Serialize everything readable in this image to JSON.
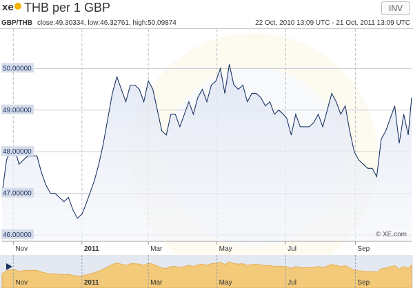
{
  "header": {
    "logo_text": "xe",
    "title": "THB per 1 GBP",
    "inv_label": "INV"
  },
  "subheader": {
    "pair": "GBP/THB",
    "stats": "close:49.30334, low:46.32761, high:50.09874",
    "range": "22 Oct, 2010 13:09 UTC - 21 Oct, 2011 13:09 UTC"
  },
  "watermark": "© XE.com",
  "colors": {
    "line": "#1a3563",
    "label_bg": "#d6dcea",
    "overview_fill": "#f3c97a",
    "overview_bg": "#e4e8f0",
    "accent": "#f2b400"
  },
  "chart_data": {
    "type": "line",
    "title": "THB per 1 GBP",
    "x_start": "2010-10-22",
    "x_end": "2011-10-21",
    "ylim": [
      45.85,
      50.95
    ],
    "y_ticks": [
      "46.00000",
      "47.00000",
      "48.00000",
      "49.00000",
      "50.00000"
    ],
    "y_tick_values": [
      46,
      47,
      48,
      49,
      50
    ],
    "month_ticks": [
      {
        "label": "Nov",
        "date": "2010-11-01",
        "bold": false
      },
      {
        "label": "2011",
        "date": "2011-01-01",
        "bold": true
      },
      {
        "label": "Mar",
        "date": "2011-03-01",
        "bold": false
      },
      {
        "label": "May",
        "date": "2011-05-01",
        "bold": false
      },
      {
        "label": "Jul",
        "date": "2011-07-01",
        "bold": false
      },
      {
        "label": "Sep",
        "date": "2011-09-01",
        "bold": false
      }
    ],
    "grid": true,
    "series": [
      {
        "x": [
          "2010-10-22",
          "2010-10-26",
          "2010-10-29",
          "2010-11-02",
          "2010-11-06",
          "2010-11-10",
          "2010-11-14",
          "2010-11-18",
          "2010-11-22",
          "2010-11-26",
          "2010-11-30",
          "2010-12-04",
          "2010-12-08",
          "2010-12-12",
          "2010-12-16",
          "2010-12-20",
          "2010-12-24",
          "2010-12-28",
          "2011-01-01",
          "2011-01-04",
          "2011-01-08",
          "2011-01-12",
          "2011-01-16",
          "2011-01-20",
          "2011-01-24",
          "2011-01-28",
          "2011-02-01",
          "2011-02-05",
          "2011-02-09",
          "2011-02-13",
          "2011-02-17",
          "2011-02-21",
          "2011-02-25",
          "2011-03-01",
          "2011-03-05",
          "2011-03-09",
          "2011-03-13",
          "2011-03-17",
          "2011-03-21",
          "2011-03-25",
          "2011-03-29",
          "2011-04-02",
          "2011-04-06",
          "2011-04-10",
          "2011-04-14",
          "2011-04-18",
          "2011-04-22",
          "2011-04-26",
          "2011-04-30",
          "2011-05-04",
          "2011-05-08",
          "2011-05-12",
          "2011-05-16",
          "2011-05-20",
          "2011-05-24",
          "2011-05-28",
          "2011-06-01",
          "2011-06-05",
          "2011-06-09",
          "2011-06-13",
          "2011-06-17",
          "2011-06-21",
          "2011-06-25",
          "2011-06-29",
          "2011-07-02",
          "2011-07-06",
          "2011-07-10",
          "2011-07-14",
          "2011-07-18",
          "2011-07-22",
          "2011-07-26",
          "2011-07-30",
          "2011-08-03",
          "2011-08-07",
          "2011-08-11",
          "2011-08-15",
          "2011-08-19",
          "2011-08-23",
          "2011-08-27",
          "2011-08-31",
          "2011-09-04",
          "2011-09-08",
          "2011-09-12",
          "2011-09-16",
          "2011-09-20",
          "2011-09-24",
          "2011-09-28",
          "2011-10-02",
          "2011-10-06",
          "2011-10-10",
          "2011-10-14",
          "2011-10-18",
          "2011-10-21"
        ],
        "y": [
          47.0,
          47.8,
          48.0,
          48.1,
          47.7,
          47.8,
          47.9,
          47.9,
          47.9,
          47.5,
          47.2,
          47.0,
          47.0,
          46.9,
          46.8,
          46.9,
          46.6,
          46.4,
          46.5,
          46.7,
          47.0,
          47.3,
          47.7,
          48.2,
          48.8,
          49.4,
          49.8,
          49.5,
          49.2,
          49.6,
          49.6,
          49.5,
          49.2,
          49.7,
          49.5,
          49.0,
          48.5,
          48.4,
          48.9,
          48.9,
          48.6,
          48.9,
          49.2,
          48.9,
          49.3,
          49.5,
          49.2,
          49.6,
          49.7,
          50.0,
          49.4,
          50.1,
          49.6,
          49.5,
          49.6,
          49.2,
          49.4,
          49.4,
          49.3,
          49.1,
          49.2,
          48.9,
          49.0,
          48.9,
          48.8,
          48.4,
          48.9,
          48.6,
          48.6,
          48.6,
          48.7,
          48.9,
          48.6,
          49.0,
          49.4,
          49.2,
          48.9,
          49.1,
          48.5,
          48.0,
          47.8,
          47.7,
          47.6,
          47.6,
          47.4,
          48.3,
          48.5,
          48.8,
          49.1,
          48.2,
          48.9,
          48.4,
          49.3
        ]
      }
    ]
  }
}
